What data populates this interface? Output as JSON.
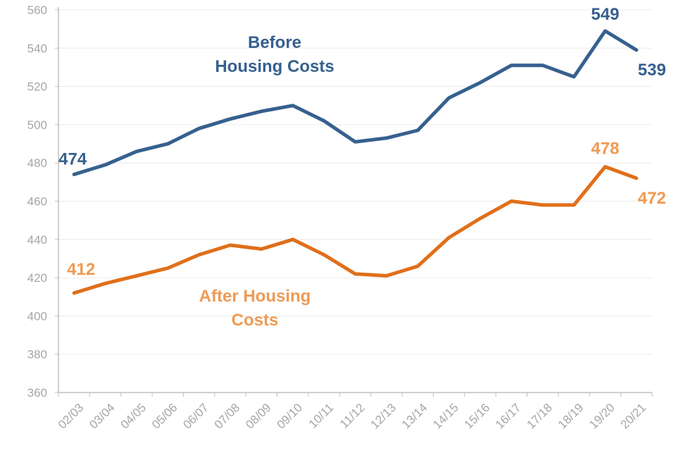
{
  "chart_data": {
    "type": "line",
    "title": "",
    "xlabel": "",
    "ylabel": "",
    "ylim": [
      360,
      560
    ],
    "yticks": [
      360,
      380,
      400,
      420,
      440,
      460,
      480,
      500,
      520,
      540,
      560
    ],
    "grid": true,
    "legend": "inline",
    "categories": [
      "02/03",
      "03/04",
      "04/05",
      "05/06",
      "06/07",
      "07/08",
      "08/09",
      "09/10",
      "10/11",
      "11/12",
      "12/13",
      "13/14",
      "14/15",
      "15/16",
      "16/17",
      "17/18",
      "18/19",
      "19/20",
      "20/21"
    ],
    "series": [
      {
        "name": "Before Housing Costs",
        "label_lines": [
          "Before",
          "Housing Costs"
        ],
        "color": "#36608f",
        "label_color": "#36608f",
        "values": [
          474,
          479,
          486,
          490,
          498,
          503,
          507,
          510,
          502,
          491,
          493,
          497,
          514,
          522,
          531,
          531,
          525,
          549,
          539
        ],
        "data_labels": [
          {
            "category": "02/03",
            "text": "474"
          },
          {
            "category": "19/20",
            "text": "549"
          },
          {
            "category": "20/21",
            "text": "539"
          }
        ]
      },
      {
        "name": "After Housing Costs",
        "label_lines": [
          "After Housing",
          "Costs"
        ],
        "color": "#e06f1a",
        "label_color": "#ee9a52",
        "values": [
          412,
          417,
          421,
          425,
          432,
          437,
          435,
          440,
          432,
          422,
          421,
          426,
          441,
          451,
          460,
          458,
          458,
          478,
          472
        ],
        "data_labels": [
          {
            "category": "02/03",
            "text": "412"
          },
          {
            "category": "19/20",
            "text": "478"
          },
          {
            "category": "20/21",
            "text": "472"
          }
        ]
      }
    ]
  }
}
